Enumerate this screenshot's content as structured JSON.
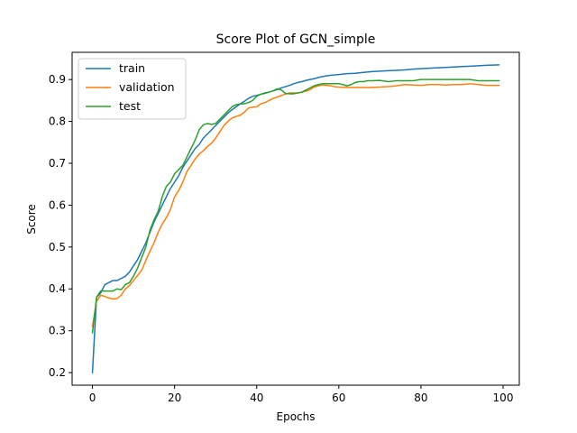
{
  "chart_data": {
    "type": "line",
    "title": "Score Plot of GCN_simple",
    "xlabel": "Epochs",
    "ylabel": "Score",
    "xlim": [
      -4.95,
      103.95
    ],
    "ylim": [
      0.17,
      0.965
    ],
    "x_ticks": [
      0,
      20,
      40,
      60,
      80,
      100
    ],
    "x_tick_labels": [
      "0",
      "20",
      "40",
      "60",
      "80",
      "100"
    ],
    "y_ticks": [
      0.2,
      0.3,
      0.4,
      0.5,
      0.6,
      0.7,
      0.8,
      0.9
    ],
    "y_tick_labels": [
      "0.2",
      "0.3",
      "0.4",
      "0.5",
      "0.6",
      "0.7",
      "0.8",
      "0.9"
    ],
    "grid": false,
    "legend_position": "upper-left",
    "series": [
      {
        "name": "train",
        "color": "#1f77b4",
        "points": [
          [
            0,
            0.2
          ],
          [
            1,
            0.38
          ],
          [
            2,
            0.39
          ],
          [
            3,
            0.41
          ],
          [
            4,
            0.415
          ],
          [
            5,
            0.42
          ],
          [
            6,
            0.42
          ],
          [
            7,
            0.425
          ],
          [
            8,
            0.43
          ],
          [
            9,
            0.44
          ],
          [
            10,
            0.455
          ],
          [
            11,
            0.47
          ],
          [
            12,
            0.49
          ],
          [
            13,
            0.51
          ],
          [
            14,
            0.535
          ],
          [
            15,
            0.56
          ],
          [
            16,
            0.58
          ],
          [
            17,
            0.6
          ],
          [
            18,
            0.62
          ],
          [
            19,
            0.64
          ],
          [
            20,
            0.655
          ],
          [
            21,
            0.67
          ],
          [
            22,
            0.69
          ],
          [
            23,
            0.705
          ],
          [
            24,
            0.72
          ],
          [
            25,
            0.735
          ],
          [
            26,
            0.745
          ],
          [
            27,
            0.76
          ],
          [
            28,
            0.77
          ],
          [
            29,
            0.78
          ],
          [
            30,
            0.79
          ],
          [
            31,
            0.8
          ],
          [
            32,
            0.81
          ],
          [
            33,
            0.82
          ],
          [
            34,
            0.828
          ],
          [
            35,
            0.835
          ],
          [
            36,
            0.842
          ],
          [
            37,
            0.848
          ],
          [
            38,
            0.855
          ],
          [
            39,
            0.86
          ],
          [
            40,
            0.862
          ],
          [
            41,
            0.865
          ],
          [
            42,
            0.868
          ],
          [
            43,
            0.87
          ],
          [
            44,
            0.873
          ],
          [
            45,
            0.876
          ],
          [
            46,
            0.88
          ],
          [
            47,
            0.883
          ],
          [
            48,
            0.886
          ],
          [
            49,
            0.89
          ],
          [
            50,
            0.893
          ],
          [
            51,
            0.895
          ],
          [
            52,
            0.898
          ],
          [
            53,
            0.9
          ],
          [
            54,
            0.902
          ],
          [
            55,
            0.905
          ],
          [
            56,
            0.907
          ],
          [
            57,
            0.909
          ],
          [
            58,
            0.91
          ],
          [
            59,
            0.911
          ],
          [
            60,
            0.912
          ],
          [
            62,
            0.914
          ],
          [
            64,
            0.915
          ],
          [
            66,
            0.917
          ],
          [
            68,
            0.919
          ],
          [
            70,
            0.92
          ],
          [
            72,
            0.921
          ],
          [
            74,
            0.922
          ],
          [
            76,
            0.923
          ],
          [
            78,
            0.925
          ],
          [
            80,
            0.926
          ],
          [
            82,
            0.927
          ],
          [
            84,
            0.928
          ],
          [
            86,
            0.929
          ],
          [
            88,
            0.93
          ],
          [
            90,
            0.931
          ],
          [
            92,
            0.932
          ],
          [
            94,
            0.933
          ],
          [
            96,
            0.934
          ],
          [
            99,
            0.935
          ]
        ]
      },
      {
        "name": "validation",
        "color": "#ff7f0e",
        "points": [
          [
            0,
            0.31
          ],
          [
            1,
            0.37
          ],
          [
            2,
            0.385
          ],
          [
            3,
            0.382
          ],
          [
            4,
            0.378
          ],
          [
            5,
            0.376
          ],
          [
            6,
            0.377
          ],
          [
            7,
            0.385
          ],
          [
            8,
            0.4
          ],
          [
            9,
            0.408
          ],
          [
            10,
            0.42
          ],
          [
            11,
            0.432
          ],
          [
            12,
            0.445
          ],
          [
            13,
            0.468
          ],
          [
            14,
            0.49
          ],
          [
            15,
            0.51
          ],
          [
            16,
            0.535
          ],
          [
            17,
            0.555
          ],
          [
            18,
            0.57
          ],
          [
            19,
            0.59
          ],
          [
            20,
            0.62
          ],
          [
            21,
            0.635
          ],
          [
            22,
            0.655
          ],
          [
            23,
            0.68
          ],
          [
            24,
            0.695
          ],
          [
            25,
            0.71
          ],
          [
            26,
            0.722
          ],
          [
            27,
            0.73
          ],
          [
            28,
            0.74
          ],
          [
            29,
            0.748
          ],
          [
            30,
            0.76
          ],
          [
            31,
            0.775
          ],
          [
            32,
            0.79
          ],
          [
            33,
            0.8
          ],
          [
            34,
            0.808
          ],
          [
            35,
            0.812
          ],
          [
            36,
            0.815
          ],
          [
            37,
            0.822
          ],
          [
            38,
            0.832
          ],
          [
            39,
            0.834
          ],
          [
            40,
            0.835
          ],
          [
            41,
            0.842
          ],
          [
            42,
            0.845
          ],
          [
            43,
            0.85
          ],
          [
            44,
            0.855
          ],
          [
            45,
            0.858
          ],
          [
            46,
            0.862
          ],
          [
            47,
            0.865
          ],
          [
            48,
            0.868
          ],
          [
            49,
            0.868
          ],
          [
            50,
            0.868
          ],
          [
            51,
            0.87
          ],
          [
            52,
            0.872
          ],
          [
            53,
            0.876
          ],
          [
            54,
            0.882
          ],
          [
            55,
            0.885
          ],
          [
            56,
            0.887
          ],
          [
            57,
            0.886
          ],
          [
            58,
            0.885
          ],
          [
            59,
            0.883
          ],
          [
            60,
            0.882
          ],
          [
            62,
            0.881
          ],
          [
            64,
            0.881
          ],
          [
            66,
            0.881
          ],
          [
            68,
            0.881
          ],
          [
            70,
            0.882
          ],
          [
            72,
            0.883
          ],
          [
            74,
            0.885
          ],
          [
            76,
            0.888
          ],
          [
            78,
            0.887
          ],
          [
            80,
            0.886
          ],
          [
            82,
            0.888
          ],
          [
            84,
            0.888
          ],
          [
            86,
            0.887
          ],
          [
            88,
            0.888
          ],
          [
            90,
            0.888
          ],
          [
            92,
            0.89
          ],
          [
            94,
            0.888
          ],
          [
            96,
            0.886
          ],
          [
            99,
            0.886
          ]
        ]
      },
      {
        "name": "test",
        "color": "#2ca02c",
        "points": [
          [
            0,
            0.295
          ],
          [
            1,
            0.38
          ],
          [
            2,
            0.395
          ],
          [
            3,
            0.395
          ],
          [
            4,
            0.395
          ],
          [
            5,
            0.395
          ],
          [
            6,
            0.4
          ],
          [
            7,
            0.398
          ],
          [
            8,
            0.41
          ],
          [
            9,
            0.415
          ],
          [
            10,
            0.43
          ],
          [
            11,
            0.45
          ],
          [
            12,
            0.475
          ],
          [
            13,
            0.5
          ],
          [
            14,
            0.54
          ],
          [
            15,
            0.565
          ],
          [
            16,
            0.585
          ],
          [
            17,
            0.62
          ],
          [
            18,
            0.645
          ],
          [
            19,
            0.655
          ],
          [
            20,
            0.675
          ],
          [
            21,
            0.685
          ],
          [
            22,
            0.695
          ],
          [
            23,
            0.715
          ],
          [
            24,
            0.735
          ],
          [
            25,
            0.755
          ],
          [
            26,
            0.78
          ],
          [
            27,
            0.792
          ],
          [
            28,
            0.795
          ],
          [
            29,
            0.793
          ],
          [
            30,
            0.795
          ],
          [
            31,
            0.805
          ],
          [
            32,
            0.815
          ],
          [
            33,
            0.825
          ],
          [
            34,
            0.835
          ],
          [
            35,
            0.84
          ],
          [
            36,
            0.842
          ],
          [
            37,
            0.842
          ],
          [
            38,
            0.845
          ],
          [
            39,
            0.85
          ],
          [
            40,
            0.86
          ],
          [
            41,
            0.865
          ],
          [
            42,
            0.867
          ],
          [
            43,
            0.87
          ],
          [
            44,
            0.873
          ],
          [
            45,
            0.878
          ],
          [
            46,
            0.875
          ],
          [
            47,
            0.867
          ],
          [
            48,
            0.866
          ],
          [
            49,
            0.866
          ],
          [
            50,
            0.868
          ],
          [
            51,
            0.87
          ],
          [
            52,
            0.875
          ],
          [
            53,
            0.88
          ],
          [
            54,
            0.885
          ],
          [
            55,
            0.888
          ],
          [
            56,
            0.89
          ],
          [
            57,
            0.89
          ],
          [
            58,
            0.89
          ],
          [
            59,
            0.89
          ],
          [
            60,
            0.89
          ],
          [
            61,
            0.888
          ],
          [
            62,
            0.885
          ],
          [
            63,
            0.888
          ],
          [
            64,
            0.893
          ],
          [
            65,
            0.895
          ],
          [
            66,
            0.895
          ],
          [
            67,
            0.897
          ],
          [
            68,
            0.897
          ],
          [
            70,
            0.898
          ],
          [
            72,
            0.895
          ],
          [
            74,
            0.897
          ],
          [
            76,
            0.897
          ],
          [
            78,
            0.897
          ],
          [
            80,
            0.9
          ],
          [
            82,
            0.9
          ],
          [
            84,
            0.9
          ],
          [
            86,
            0.9
          ],
          [
            88,
            0.9
          ],
          [
            90,
            0.9
          ],
          [
            92,
            0.9
          ],
          [
            94,
            0.897
          ],
          [
            96,
            0.897
          ],
          [
            99,
            0.897
          ]
        ]
      }
    ]
  }
}
